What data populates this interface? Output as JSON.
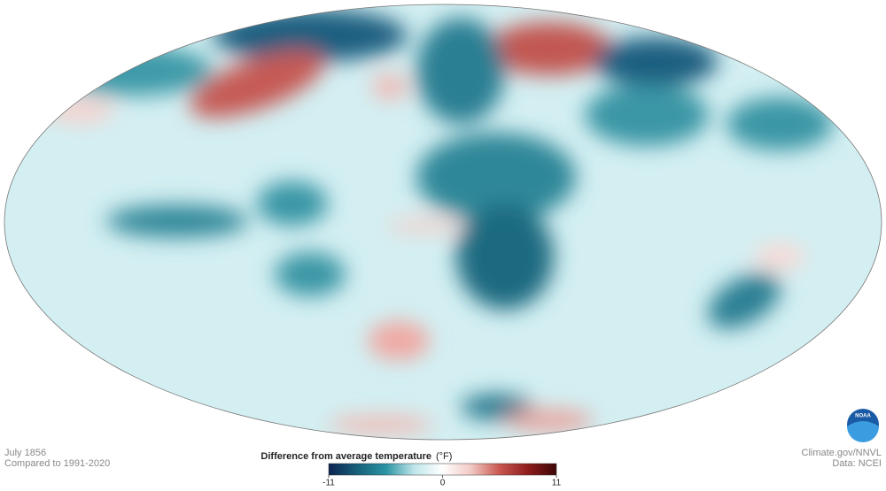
{
  "caption": {
    "date": "July 1856",
    "baseline": "Compared to 1991-2020"
  },
  "credits": {
    "source": "Climate.gov/NNVL",
    "data": "Data: NCEI"
  },
  "logo": {
    "text": "NOAA"
  },
  "legend": {
    "title": "Difference from average temperature",
    "unit": "(°F)",
    "range": [
      -11,
      11
    ],
    "ticks": [
      -11,
      0,
      11
    ],
    "colors": [
      "#0d2452",
      "#17607a",
      "#2a93a3",
      "#bfe6ea",
      "#ffffff",
      "#f2c9c4",
      "#c9574f",
      "#8e1c1c",
      "#3d0606"
    ]
  }
}
